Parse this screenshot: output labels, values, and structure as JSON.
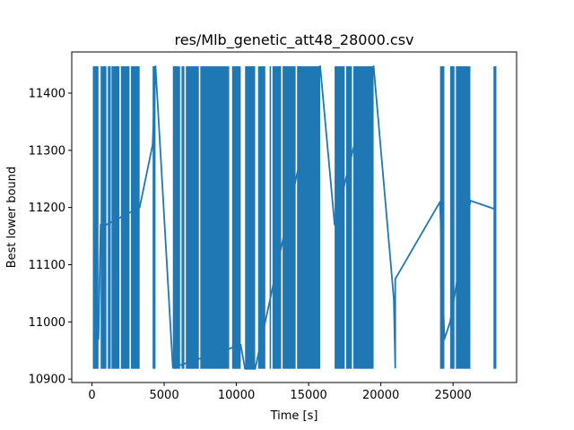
{
  "chart_data": {
    "type": "line",
    "title": "res/Mlb_genetic_att48_28000.csv",
    "xlabel": "Time [s]",
    "ylabel": "Best lower bound",
    "xlim": [
      -1400,
      29400
    ],
    "ylim": [
      10894,
      11472
    ],
    "xticks": [
      0,
      5000,
      10000,
      15000,
      20000,
      25000
    ],
    "yticks": [
      10900,
      11000,
      11100,
      11200,
      11300,
      11400
    ],
    "grid": false,
    "legend": "none",
    "color": "#1f77b4",
    "y_min_value": 10918,
    "y_max_value": 11447,
    "series": [
      {
        "dense_bands": [
          [
            60,
            450
          ],
          [
            600,
            1000
          ],
          [
            1100,
            1300
          ],
          [
            1350,
            1900
          ],
          [
            2000,
            2600
          ],
          [
            2700,
            3300
          ],
          [
            4200,
            4400
          ],
          [
            5600,
            6100
          ],
          [
            6200,
            6400
          ],
          [
            6500,
            7400
          ],
          [
            7500,
            9500
          ],
          [
            9700,
            10300
          ],
          [
            10600,
            11300
          ],
          [
            11500,
            12000
          ],
          [
            12300,
            12400
          ],
          [
            12500,
            13100
          ],
          [
            13200,
            14100
          ],
          [
            14200,
            15800
          ],
          [
            16800,
            17500
          ],
          [
            17600,
            18000
          ],
          [
            18100,
            19500
          ],
          [
            24100,
            24400
          ],
          [
            24800,
            25100
          ],
          [
            25200,
            26200
          ],
          [
            27800,
            28000
          ]
        ],
        "points": [
          [
            450,
            10970
          ],
          [
            600,
            11170
          ],
          [
            1000,
            11170
          ],
          [
            3300,
            11200
          ],
          [
            4200,
            11310
          ],
          [
            4400,
            11447
          ],
          [
            5600,
            10920
          ],
          [
            10300,
            10960
          ],
          [
            10600,
            10918
          ],
          [
            11300,
            10918
          ],
          [
            15800,
            11447
          ],
          [
            16800,
            11170
          ],
          [
            19500,
            11447
          ],
          [
            20900,
            11040
          ],
          [
            21000,
            10920
          ],
          [
            21000,
            11075
          ],
          [
            24100,
            11210
          ],
          [
            24400,
            10970
          ],
          [
            24800,
            11000
          ],
          [
            26200,
            11212
          ],
          [
            27800,
            11198
          ]
        ]
      }
    ]
  }
}
